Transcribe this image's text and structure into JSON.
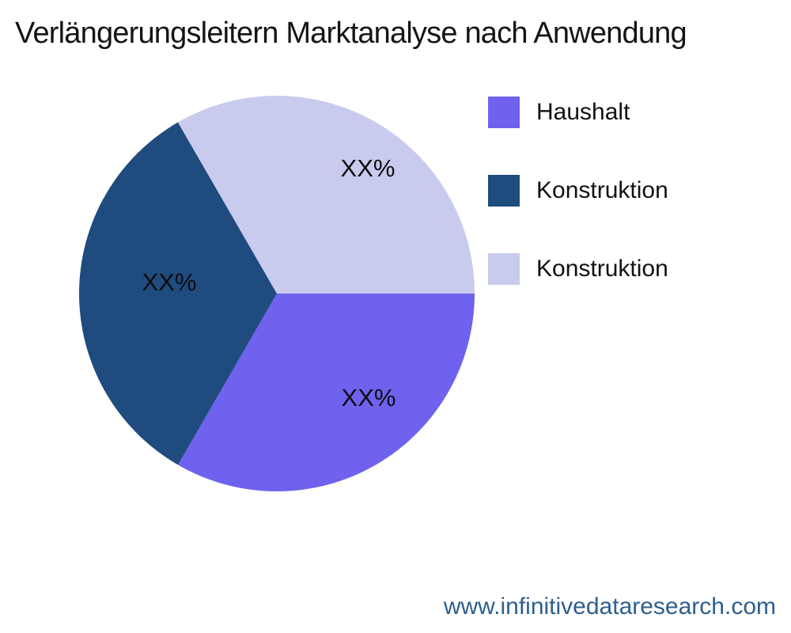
{
  "chart_data": {
    "type": "pie",
    "title": "Verlängerungsleitern Marktanalyse nach Anwendung",
    "legend_position": "right",
    "start_angle_deg": 0,
    "direction": "clockwise",
    "total": 100,
    "slices": [
      {
        "name": "Haushalt",
        "value": 33.33,
        "label": "XX%",
        "color": "#6e62ef"
      },
      {
        "name": "Konstruktion",
        "value": 33.33,
        "label": "XX%",
        "color": "#1f4b7e"
      },
      {
        "name": "Konstruktion",
        "value": 33.34,
        "label": "XX%",
        "color": "#c8cbee"
      }
    ]
  },
  "footer": {
    "url_text": "www.infinitivedataresearch.com",
    "color": "#2e5f8c"
  }
}
